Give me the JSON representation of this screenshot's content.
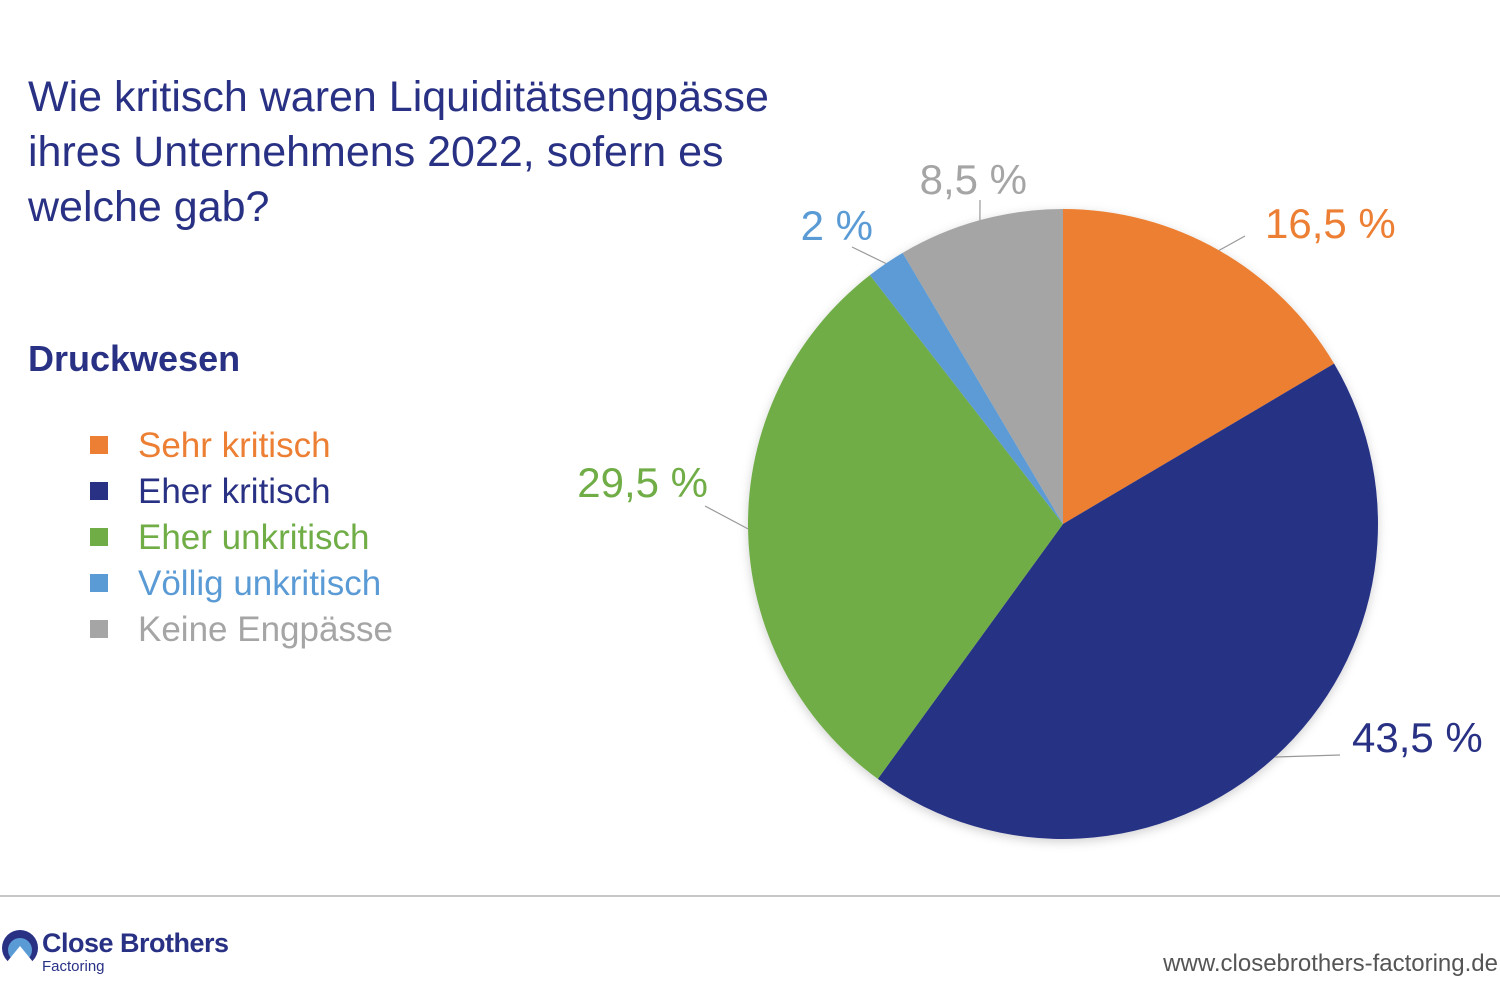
{
  "title_lines": [
    "Wie kritisch waren Liquiditätsengpässe",
    "ihres Unternehmens 2022, sofern es",
    "welche gab?"
  ],
  "subtitle": "Druckwesen",
  "colors": {
    "title": "#283184",
    "sehr_kritisch": "#EC7F33",
    "eher_kritisch": "#283184",
    "eher_unkritisch": "#70AD47",
    "voellig_unkritisch": "#5B9BD5",
    "keine_engpaesse": "#A5A5A5",
    "leader_line": "#999999"
  },
  "legend": [
    {
      "label": "Sehr kritisch",
      "color": "#EC7F33"
    },
    {
      "label": "Eher kritisch",
      "color": "#283184"
    },
    {
      "label": "Eher unkritisch",
      "color": "#70AD47"
    },
    {
      "label": "Völlig unkritisch",
      "color": "#5B9BD5"
    },
    {
      "label": "Keine Engpässe",
      "color": "#A5A5A5"
    }
  ],
  "chart_data": {
    "type": "pie",
    "title": "Wie kritisch waren Liquiditätsengpässe ihres Unternehmens 2022, sofern es welche gab?",
    "subtitle": "Druckwesen",
    "start_angle": "12 o'clock",
    "direction": "clockwise",
    "legend_position": "left",
    "slices": [
      {
        "label": "Sehr kritisch",
        "value": 16.5,
        "display": "16,5 %",
        "color": "#EC7F33"
      },
      {
        "label": "Eher kritisch",
        "value": 43.5,
        "display": "43,5 %",
        "color": "#283184"
      },
      {
        "label": "Eher unkritisch",
        "value": 29.5,
        "display": "29,5 %",
        "color": "#70AD47"
      },
      {
        "label": "Völlig unkritisch",
        "value": 2,
        "display": "2 %",
        "color": "#5B9BD5"
      },
      {
        "label": "Keine Engpässe",
        "value": 8.5,
        "display": "8,5 %",
        "color": "#A5A5A5"
      }
    ]
  },
  "footer": {
    "brand_name": "Close Brothers",
    "brand_sub": "Factoring",
    "website": "www.closebrothers-factoring.de"
  }
}
